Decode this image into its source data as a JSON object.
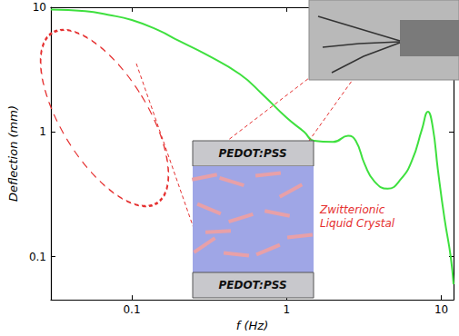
{
  "chart_data": {
    "type": "line",
    "xlabel": "f (Hz)",
    "ylabel": "Deflection (mm)",
    "log": true,
    "xlim": [
      0.03,
      12
    ],
    "ylim": [
      0.045,
      10
    ],
    "xticks": [
      0.1,
      1,
      10
    ],
    "yticks": [
      0.1,
      1,
      10
    ],
    "x": [
      0.03,
      0.05,
      0.07,
      0.1,
      0.15,
      0.2,
      0.3,
      0.5,
      0.7,
      1.0,
      1.3,
      1.5,
      2.0,
      2.5,
      2.8,
      3.2,
      3.7,
      4.5,
      5.5,
      6.5,
      7.5,
      8.2,
      8.8,
      9.5,
      10.5,
      11.5,
      12
    ],
    "values": [
      9.6,
      9.3,
      8.7,
      7.9,
      6.5,
      5.4,
      4.2,
      2.9,
      2.0,
      1.3,
      1.0,
      0.85,
      0.83,
      0.93,
      0.85,
      0.55,
      0.4,
      0.35,
      0.42,
      0.6,
      1.05,
      1.45,
      1.1,
      0.5,
      0.2,
      0.1,
      0.06
    ],
    "color": "#3ee03e",
    "annotations": [
      "PEDOT:PSS",
      "PEDOT:PSS",
      "Zwitterionic\nLiquid Crystal"
    ]
  }
}
